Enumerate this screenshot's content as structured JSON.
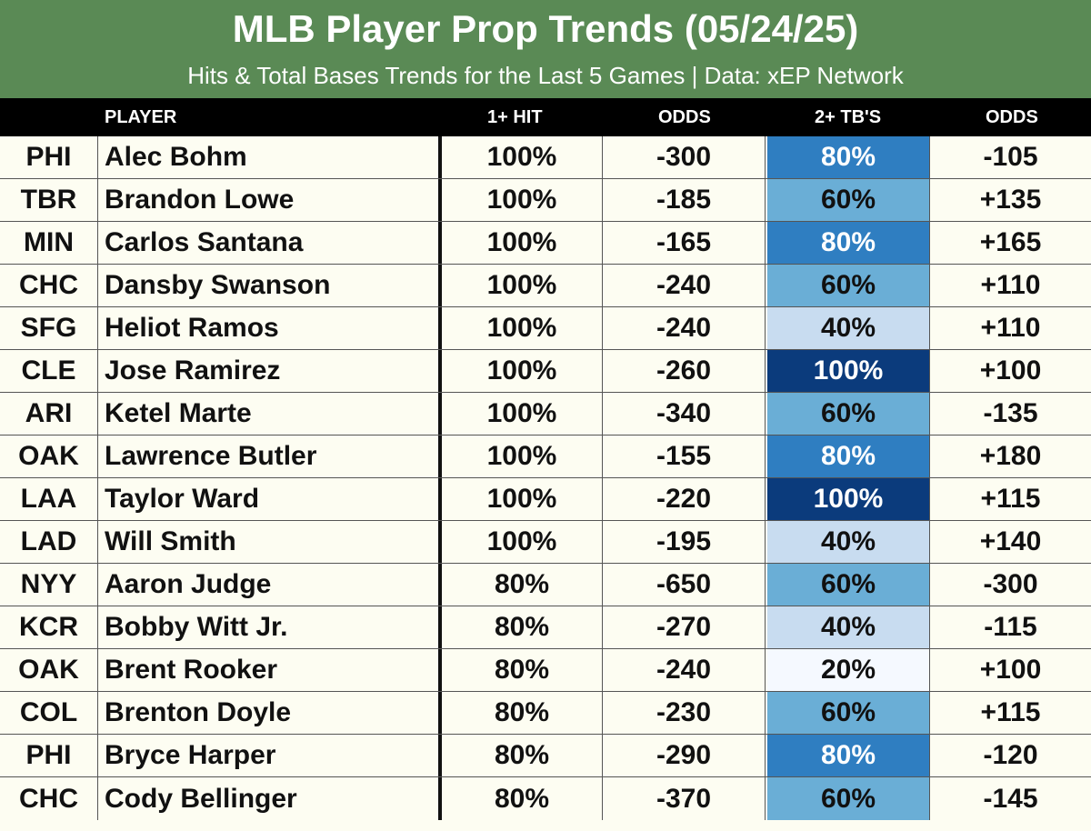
{
  "header": {
    "title": "MLB Player Prop Trends (05/24/25)",
    "subtitle": "Hits & Total Bases Trends for the Last 5 Games | Data: xEP Network",
    "bg_color": "#5a8a55"
  },
  "columns": {
    "player": "PLAYER",
    "hit": "1+ HIT",
    "odds1": "ODDS",
    "tb": "2+ TB'S",
    "odds2": "ODDS"
  },
  "tb_colors": {
    "20%": "#f5f9ff",
    "40%": "#c8dcf0",
    "60%": "#6aaed6",
    "80%": "#2f7ec1",
    "100%": "#0b3b7c"
  },
  "tb_text_colors": {
    "20%": "#111111",
    "40%": "#111111",
    "60%": "#111111",
    "80%": "#ffffff",
    "100%": "#ffffff"
  },
  "rows": [
    {
      "team": "PHI",
      "player": "Alec Bohm",
      "hit": "100%",
      "odds1": "-300",
      "tb": "80%",
      "odds2": "-105"
    },
    {
      "team": "TBR",
      "player": "Brandon Lowe",
      "hit": "100%",
      "odds1": "-185",
      "tb": "60%",
      "odds2": "+135"
    },
    {
      "team": "MIN",
      "player": "Carlos Santana",
      "hit": "100%",
      "odds1": "-165",
      "tb": "80%",
      "odds2": "+165"
    },
    {
      "team": "CHC",
      "player": "Dansby Swanson",
      "hit": "100%",
      "odds1": "-240",
      "tb": "60%",
      "odds2": "+110"
    },
    {
      "team": "SFG",
      "player": "Heliot Ramos",
      "hit": "100%",
      "odds1": "-240",
      "tb": "40%",
      "odds2": "+110"
    },
    {
      "team": "CLE",
      "player": "Jose Ramirez",
      "hit": "100%",
      "odds1": "-260",
      "tb": "100%",
      "odds2": "+100"
    },
    {
      "team": "ARI",
      "player": "Ketel Marte",
      "hit": "100%",
      "odds1": "-340",
      "tb": "60%",
      "odds2": "-135"
    },
    {
      "team": "OAK",
      "player": "Lawrence Butler",
      "hit": "100%",
      "odds1": "-155",
      "tb": "80%",
      "odds2": "+180"
    },
    {
      "team": "LAA",
      "player": "Taylor Ward",
      "hit": "100%",
      "odds1": "-220",
      "tb": "100%",
      "odds2": "+115"
    },
    {
      "team": "LAD",
      "player": "Will Smith",
      "hit": "100%",
      "odds1": "-195",
      "tb": "40%",
      "odds2": "+140"
    },
    {
      "team": "NYY",
      "player": "Aaron Judge",
      "hit": "80%",
      "odds1": "-650",
      "tb": "60%",
      "odds2": "-300"
    },
    {
      "team": "KCR",
      "player": "Bobby Witt Jr.",
      "hit": "80%",
      "odds1": "-270",
      "tb": "40%",
      "odds2": "-115"
    },
    {
      "team": "OAK",
      "player": "Brent Rooker",
      "hit": "80%",
      "odds1": "-240",
      "tb": "20%",
      "odds2": "+100"
    },
    {
      "team": "COL",
      "player": "Brenton Doyle",
      "hit": "80%",
      "odds1": "-230",
      "tb": "60%",
      "odds2": "+115"
    },
    {
      "team": "PHI",
      "player": "Bryce Harper",
      "hit": "80%",
      "odds1": "-290",
      "tb": "80%",
      "odds2": "-120"
    },
    {
      "team": "CHC",
      "player": "Cody Bellinger",
      "hit": "80%",
      "odds1": "-370",
      "tb": "60%",
      "odds2": "-145"
    }
  ]
}
